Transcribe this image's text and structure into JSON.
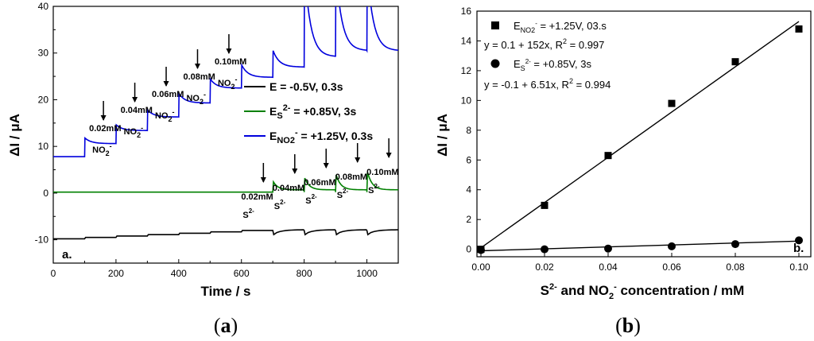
{
  "chart_data": [
    {
      "type": "line",
      "panel_label": "a.",
      "caption": {
        "open": "(",
        "letter": "a",
        "close": ")"
      },
      "xlabel": "Time / s",
      "ylabel": "ΔI / μA",
      "xlim": [
        0,
        1100
      ],
      "ylim": [
        -15,
        40
      ],
      "xticks": [
        0,
        200,
        400,
        600,
        800,
        1000
      ],
      "yticks": [
        -10,
        0,
        10,
        20,
        30,
        40
      ],
      "series": [
        {
          "name": "E = -0.5V, 0.3s",
          "color": "#000000",
          "base": -9.8,
          "step": 0.3,
          "dip": -0.9,
          "injections": [
            100,
            200,
            300,
            400,
            500,
            600,
            700,
            800,
            900,
            1000
          ]
        },
        {
          "name_main": "E",
          "name_sub": "S",
          "name_sup": "2-",
          "name_rest": " = +0.85V, 3s",
          "color": "#008000",
          "base": 0.2,
          "step": 0.0,
          "spike": [
            2.2,
            3.0,
            3.7,
            4.3,
            4.8
          ],
          "injections": [
            700,
            800,
            900,
            1000,
            1100
          ]
        },
        {
          "name_main": "E",
          "name_sub": "NO2",
          "name_sup": "-",
          "name_rest": " = +1.25V, 0.3s",
          "color": "#0000dd",
          "base": 7.8,
          "levels": [
            7.8,
            10.6,
            13.4,
            16.3,
            19.3,
            22.5,
            24.8,
            27.0,
            29.2,
            30.5,
            30.5
          ],
          "spike_to": [
            11.8,
            14.6,
            17.8,
            21.3,
            24.4,
            27.4,
            30.5,
            48,
            48,
            48,
            48
          ],
          "injections": [
            100,
            200,
            300,
            400,
            500,
            600,
            700,
            800,
            900,
            1000
          ]
        }
      ],
      "annotations": {
        "no2_concs": [
          "0.02mM",
          "0.04mM",
          "0.06mM",
          "0.08mM",
          "0.10mM"
        ],
        "no2_label": "NO",
        "no2_sub": "2",
        "no2_sup": "-",
        "s_concs": [
          "0.02mM",
          "0.04mM",
          "0.06mM",
          "0.08mM",
          "0.10mM"
        ],
        "s_label": "S",
        "s_sup": "2-"
      }
    },
    {
      "type": "scatter",
      "panel_label": "b.",
      "caption": {
        "open": "(",
        "letter": "b",
        "close": ")"
      },
      "xlabel_parts": [
        "S",
        "2-",
        " and NO",
        "2",
        "-",
        " concentration / mM"
      ],
      "ylabel": "ΔI / μA",
      "xlim": [
        0,
        0.1
      ],
      "ylim": [
        -0.5,
        16
      ],
      "xticks": [
        "0.00",
        "0.02",
        "0.04",
        "0.06",
        "0.08",
        "0.10"
      ],
      "yticks": [
        0,
        2,
        4,
        6,
        8,
        10,
        12,
        14,
        16
      ],
      "series": [
        {
          "legend_main": "E",
          "legend_sub": "NO2",
          "legend_sup": "-",
          "legend_rest": " = +1.25V, 03.s",
          "marker": "square",
          "x": [
            0.0,
            0.02,
            0.04,
            0.06,
            0.08,
            0.1
          ],
          "y": [
            0.0,
            2.95,
            6.3,
            9.8,
            12.6,
            14.8
          ],
          "fit_intercept": 0.1,
          "fit_slope": 152,
          "fit_text": "y = 0.1 + 152x, R",
          "fit_r2": " = 0.997"
        },
        {
          "legend_main": "E",
          "legend_sub": "S",
          "legend_sup": "2-",
          "legend_rest": " = +0.85V, 3s",
          "marker": "circle",
          "x": [
            0.0,
            0.02,
            0.04,
            0.06,
            0.08,
            0.1
          ],
          "y": [
            -0.05,
            0.0,
            0.05,
            0.2,
            0.35,
            0.6
          ],
          "fit_intercept": -0.1,
          "fit_slope": 6.51,
          "fit_text": "y = -0.1 + 6.51x, R",
          "fit_r2": " = 0.994"
        }
      ]
    }
  ]
}
